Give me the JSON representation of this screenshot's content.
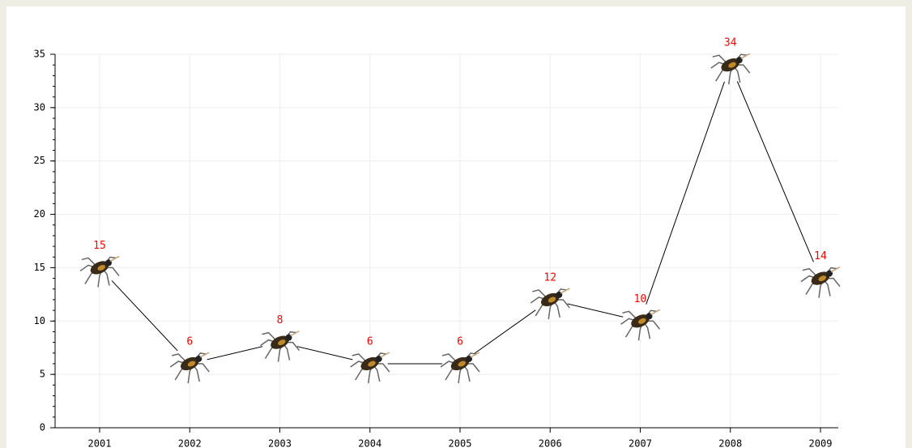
{
  "chart_data": {
    "type": "line",
    "categories": [
      "2001",
      "2002",
      "2003",
      "2004",
      "2005",
      "2006",
      "2007",
      "2008",
      "2009"
    ],
    "values": [
      15,
      6,
      8,
      6,
      6,
      12,
      10,
      34,
      14
    ],
    "color": "#000000",
    "label_color": "#ff0000",
    "ylim": [
      0,
      35
    ],
    "yticks": [
      0,
      5,
      10,
      15,
      20,
      25,
      30,
      35
    ],
    "grid": true
  }
}
